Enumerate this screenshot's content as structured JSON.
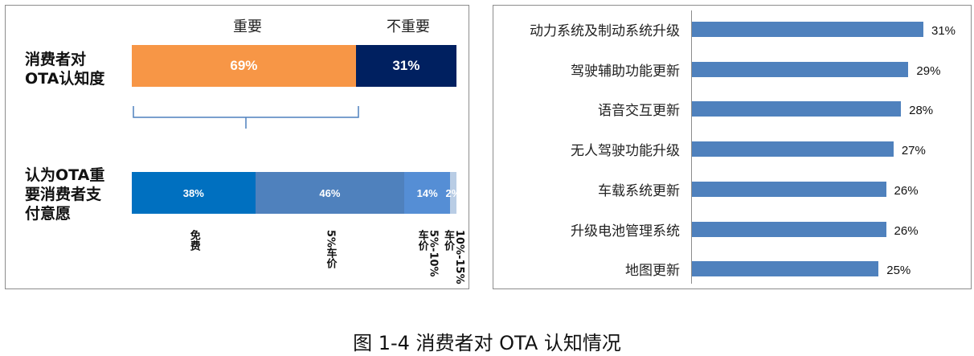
{
  "caption": "图 1-4 消费者对 OTA 认知情况",
  "chart_data": [
    {
      "type": "bar",
      "orientation": "horizontal-stacked",
      "headers": [
        "重要",
        "不重要"
      ],
      "rows": [
        {
          "label": "消费者对\nOTA认知度",
          "segments": [
            {
              "value": 69,
              "text": "69%",
              "color": "#f79646"
            },
            {
              "value": 31,
              "text": "31%",
              "color": "#002060"
            }
          ]
        },
        {
          "label": "认为OTA重\n要消费者支\n付意愿",
          "segments": [
            {
              "value": 38,
              "text": "38%",
              "color": "#0070c0",
              "category": "免费"
            },
            {
              "value": 46,
              "text": "46%",
              "color": "#4f81bd",
              "category": "5%车价"
            },
            {
              "value": 14,
              "text": "14%",
              "color": "#558ed5",
              "category": "5%-10%\n车价"
            },
            {
              "value": 2,
              "text": "2%",
              "color": "#b9cde5",
              "category": "10%-15%\n车价"
            }
          ]
        }
      ]
    },
    {
      "type": "bar",
      "orientation": "horizontal",
      "categories": [
        "动力系统及制动系统升级",
        "驾驶辅助功能更新",
        "语音交互更新",
        "无人驾驶功能升级",
        "车载系统更新",
        "升级电池管理系统",
        "地图更新"
      ],
      "values": [
        31,
        29,
        28,
        27,
        26,
        26,
        25
      ],
      "value_labels": [
        "31%",
        "29%",
        "28%",
        "27%",
        "26%",
        "26%",
        "25%"
      ],
      "color": "#4f81bd",
      "xlim": [
        0,
        31
      ]
    }
  ]
}
